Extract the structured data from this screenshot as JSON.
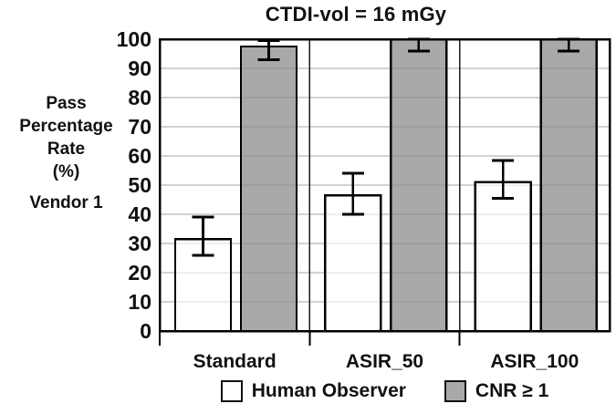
{
  "title": "CTDI-vol = 16 mGy",
  "y_axis_label_lines": [
    "Pass",
    "Percentage",
    "Rate",
    "(%)"
  ],
  "vendor_label": "Vendor 1",
  "colors": {
    "human_observer_fill": "#ffffff",
    "cnr_fill": "#a9a9a9",
    "bar_border": "#000000",
    "gridline": "#bfbfbf",
    "text": "#111111"
  },
  "chart_data": {
    "type": "bar",
    "title": "CTDI-vol = 16 mGy",
    "categories": [
      "Standard",
      "ASIR_50",
      "ASIR_100"
    ],
    "series": [
      {
        "name": "Human Observer",
        "fill": "#ffffff",
        "values": [
          31.5,
          46.5,
          51
        ],
        "error_low": [
          26,
          40,
          45.5
        ],
        "error_high": [
          39,
          54,
          58.5
        ]
      },
      {
        "name": "CNR ≥ 1",
        "fill": "#a9a9a9",
        "values": [
          97.5,
          100,
          100
        ],
        "error_low": [
          93,
          96,
          96
        ],
        "error_high": [
          99.5,
          100,
          100
        ]
      }
    ],
    "ylabel": "Pass Percentage Rate (%)",
    "ylabel_secondary": "Vendor 1",
    "xlabel": "",
    "ylim": [
      0,
      100
    ],
    "ytick_step": 10,
    "grid": true,
    "legend_position": "bottom",
    "error_bars": true
  }
}
